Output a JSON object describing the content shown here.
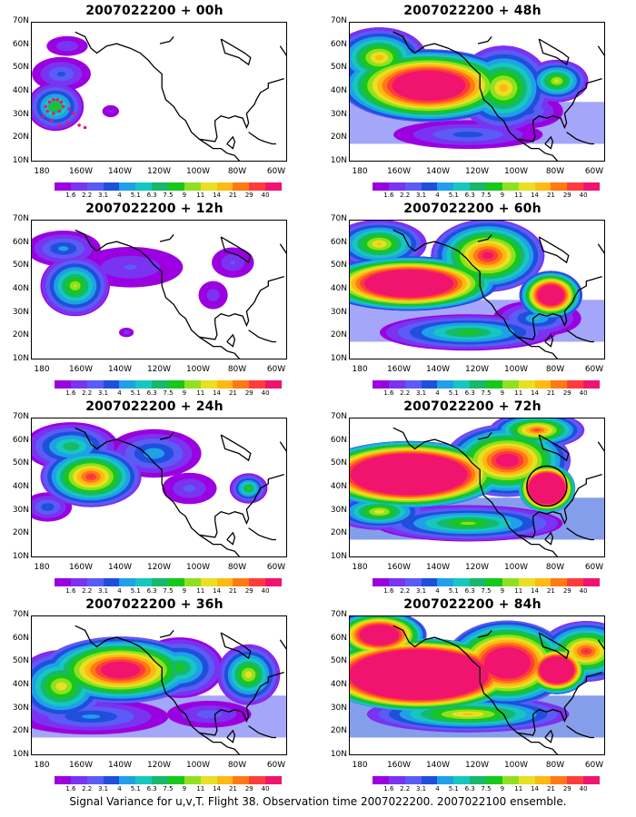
{
  "caption": "Signal Variance for u,v,T. Flight 38. Observation time 2007022200. 2007022100 ensemble.",
  "chart_data": [
    {
      "type": "heatmap",
      "title": "2007022200 + 00h",
      "lead": "00h",
      "level": 0.6,
      "blobs": [
        [
          178,
          34,
          9,
          8,
          1.0
        ],
        [
          175,
          48,
          10,
          6,
          0.5
        ],
        [
          172,
          60,
          8,
          4,
          0.35
        ],
        [
          150,
          32,
          4,
          3,
          0.25
        ]
      ],
      "observations": true,
      "circle": null
    },
    {
      "type": "heatmap",
      "title": "2007022200 + 12h",
      "lead": "12h",
      "level": 0.8,
      "blobs": [
        [
          168,
          42,
          11,
          10,
          1.1
        ],
        [
          174,
          58,
          12,
          6,
          0.6
        ],
        [
          140,
          50,
          20,
          8,
          0.35
        ],
        [
          98,
          38,
          6,
          6,
          0.3
        ],
        [
          88,
          52,
          8,
          6,
          0.35
        ],
        [
          142,
          22,
          3,
          2,
          0.3
        ]
      ],
      "observations": false,
      "circle": null
    },
    {
      "type": "heatmap",
      "title": "2007022200 + 24h",
      "lead": "24h",
      "level": 1.2,
      "blobs": [
        [
          160,
          45,
          16,
          10,
          1.4
        ],
        [
          170,
          58,
          15,
          8,
          0.8
        ],
        [
          128,
          55,
          15,
          8,
          0.6
        ],
        [
          110,
          40,
          10,
          6,
          0.35
        ],
        [
          80,
          40,
          6,
          5,
          0.9
        ],
        [
          182,
          32,
          8,
          5,
          0.5
        ]
      ],
      "observations": false,
      "circle": null
    },
    {
      "type": "heatmap",
      "title": "2007022200 + 36h",
      "lead": "36h",
      "level": 1.6,
      "blobs": [
        [
          145,
          47,
          25,
          11,
          1.6
        ],
        [
          175,
          40,
          15,
          12,
          1.0
        ],
        [
          115,
          48,
          14,
          10,
          0.8
        ],
        [
          80,
          45,
          10,
          10,
          1.0
        ],
        [
          160,
          27,
          25,
          6,
          0.5
        ],
        [
          100,
          28,
          15,
          5,
          0.35
        ]
      ],
      "observations": false,
      "circle": null
    },
    {
      "type": "heatmap",
      "title": "2007022200 + 48h",
      "lead": "48h",
      "level": 2.0,
      "blobs": [
        [
          150,
          43,
          28,
          12,
          1.8
        ],
        [
          112,
          42,
          15,
          14,
          1.0
        ],
        [
          85,
          45,
          10,
          7,
          0.9
        ],
        [
          175,
          55,
          15,
          10,
          1.0
        ],
        [
          130,
          22,
          25,
          5,
          0.4
        ],
        [
          100,
          32,
          12,
          6,
          0.4
        ]
      ],
      "observations": false,
      "circle": null
    },
    {
      "type": "heatmap",
      "title": "2007022200 + 60h",
      "lead": "60h",
      "level": 2.4,
      "blobs": [
        [
          160,
          43,
          28,
          9,
          1.9
        ],
        [
          120,
          55,
          18,
          12,
          1.2
        ],
        [
          88,
          38,
          10,
          8,
          1.7
        ],
        [
          175,
          60,
          15,
          8,
          0.9
        ],
        [
          130,
          22,
          28,
          6,
          0.7
        ],
        [
          95,
          28,
          14,
          6,
          0.5
        ]
      ],
      "observations": false,
      "circle": null
    },
    {
      "type": "heatmap",
      "title": "2007022200 + 72h",
      "lead": "72h",
      "level": 2.9,
      "blobs": [
        [
          160,
          46,
          30,
          11,
          2.1
        ],
        [
          110,
          52,
          20,
          12,
          1.2
        ],
        [
          90,
          40,
          9,
          8,
          2.2
        ],
        [
          175,
          30,
          15,
          6,
          0.8
        ],
        [
          130,
          25,
          30,
          6,
          0.7
        ],
        [
          95,
          65,
          15,
          6,
          1.0
        ]
      ],
      "observations": false,
      "circle": {
        "lon": 90,
        "lat": 41
      }
    },
    {
      "type": "heatmap",
      "title": "2007022200 + 84h",
      "lead": "84h",
      "level": 3.2,
      "blobs": [
        [
          155,
          45,
          32,
          12,
          2.3
        ],
        [
          110,
          50,
          20,
          14,
          1.4
        ],
        [
          85,
          47,
          10,
          8,
          1.8
        ],
        [
          175,
          62,
          15,
          8,
          1.5
        ],
        [
          130,
          28,
          32,
          6,
          0.8
        ],
        [
          70,
          55,
          15,
          10,
          1.0
        ]
      ],
      "observations": false,
      "circle": null
    }
  ],
  "ylabels": [
    "70N",
    "60N",
    "50N",
    "40N",
    "30N",
    "20N",
    "10N"
  ],
  "xlabels": [
    "180",
    "160W",
    "140W",
    "120W",
    "100W",
    "80W",
    "60W"
  ],
  "colorbar": {
    "labels": [
      "1.6",
      "2.2",
      "3.1",
      "4",
      "5.1",
      "6.3",
      "7.5",
      "9",
      "11",
      "14",
      "21",
      "29",
      "40"
    ],
    "colors": [
      "#9b00e0",
      "#7a33f0",
      "#5a5cf5",
      "#1f4fdc",
      "#1fa0e8",
      "#16c7c0",
      "#16b86a",
      "#18c818",
      "#90e020",
      "#e8e020",
      "#ffb814",
      "#ff7a14",
      "#ff3c3c",
      "#f0146e"
    ]
  }
}
